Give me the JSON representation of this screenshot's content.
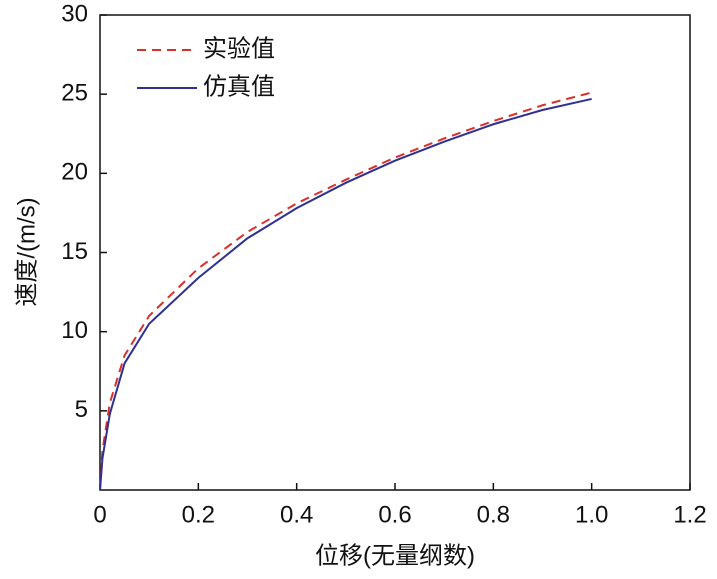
{
  "chart_data": {
    "type": "line",
    "xlabel": "位移(无量纲数)",
    "ylabel": "速度/(m/s)",
    "x": [
      0,
      0.005,
      0.02,
      0.05,
      0.1,
      0.2,
      0.3,
      0.4,
      0.5,
      0.6,
      0.7,
      0.8,
      0.9,
      1.0
    ],
    "series": [
      {
        "name": "实验值",
        "color": "#d9302c",
        "style": "dashed",
        "values": [
          0,
          2.5,
          5.5,
          8.5,
          11,
          14,
          16.3,
          18.1,
          19.6,
          21,
          22.2,
          23.3,
          24.3,
          25.1
        ]
      },
      {
        "name": "仿真值",
        "color": "#2e3192",
        "style": "solid",
        "values": [
          0,
          2,
          4.8,
          8,
          10.5,
          13.4,
          15.9,
          17.8,
          19.4,
          20.8,
          22.0,
          23.1,
          24.0,
          24.7
        ]
      }
    ],
    "xlim": [
      0,
      1.2
    ],
    "xticks": [
      0,
      0.2,
      0.4,
      0.6,
      0.8,
      {
        "value": 1,
        "label": "1.0"
      },
      1.2
    ],
    "ylim": [
      0,
      30
    ],
    "yticks": [
      5,
      10,
      15,
      20,
      25,
      30
    ],
    "grid": false,
    "legend": "upper left"
  }
}
